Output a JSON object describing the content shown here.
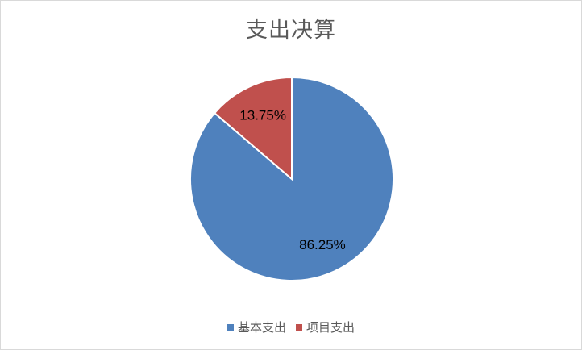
{
  "chart_data": {
    "type": "pie",
    "title": "支出决算",
    "categories": [
      "基本支出",
      "项目支出"
    ],
    "values": [
      86.25,
      13.75
    ],
    "labels": [
      "86.25%",
      "13.75%"
    ],
    "colors": [
      "#4F81BD",
      "#C0504D"
    ],
    "legend_position": "bottom",
    "start": "top",
    "direction": "clockwise"
  }
}
